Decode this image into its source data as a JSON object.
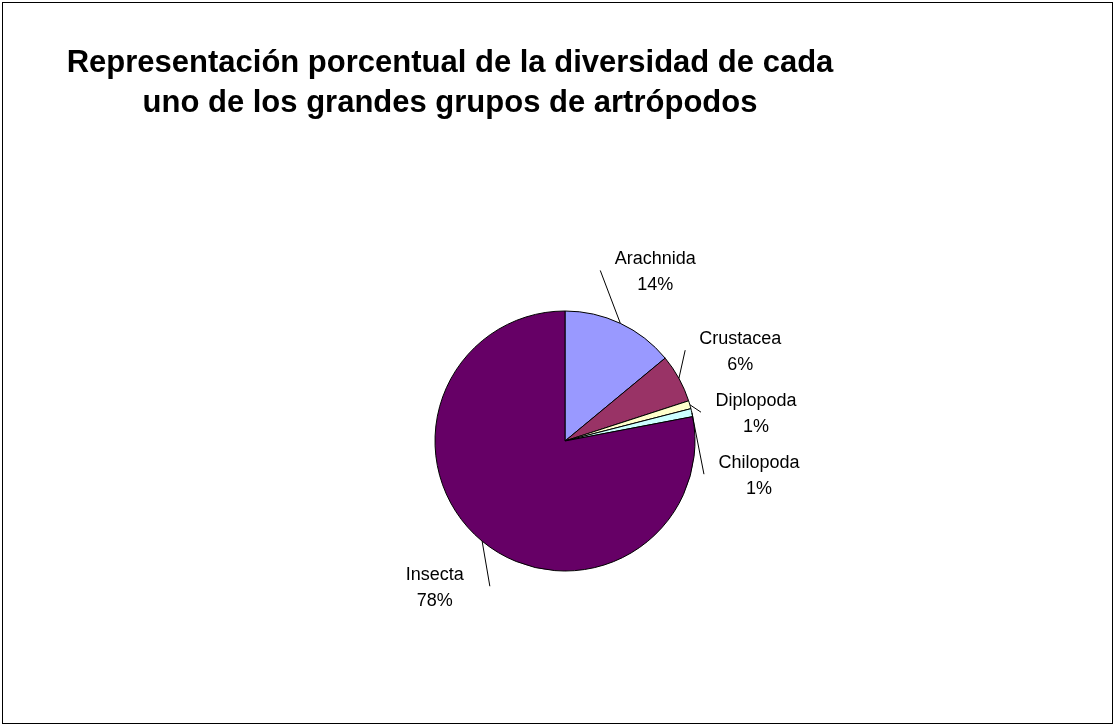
{
  "chart_data": {
    "type": "pie",
    "title": "Representación porcentual de la diversidad de cada uno de los grandes grupos de artrópodos",
    "categories": [
      "Arachnida",
      "Crustacea",
      "Diplopoda",
      "Chilopoda",
      "Insecta"
    ],
    "values": [
      14,
      6,
      1,
      1,
      78
    ],
    "value_labels": [
      "14%",
      "6%",
      "1%",
      "1%",
      "78%"
    ],
    "colors": [
      "#9999ff",
      "#993366",
      "#ffffcc",
      "#ccffff",
      "#660066"
    ],
    "legend": false
  }
}
